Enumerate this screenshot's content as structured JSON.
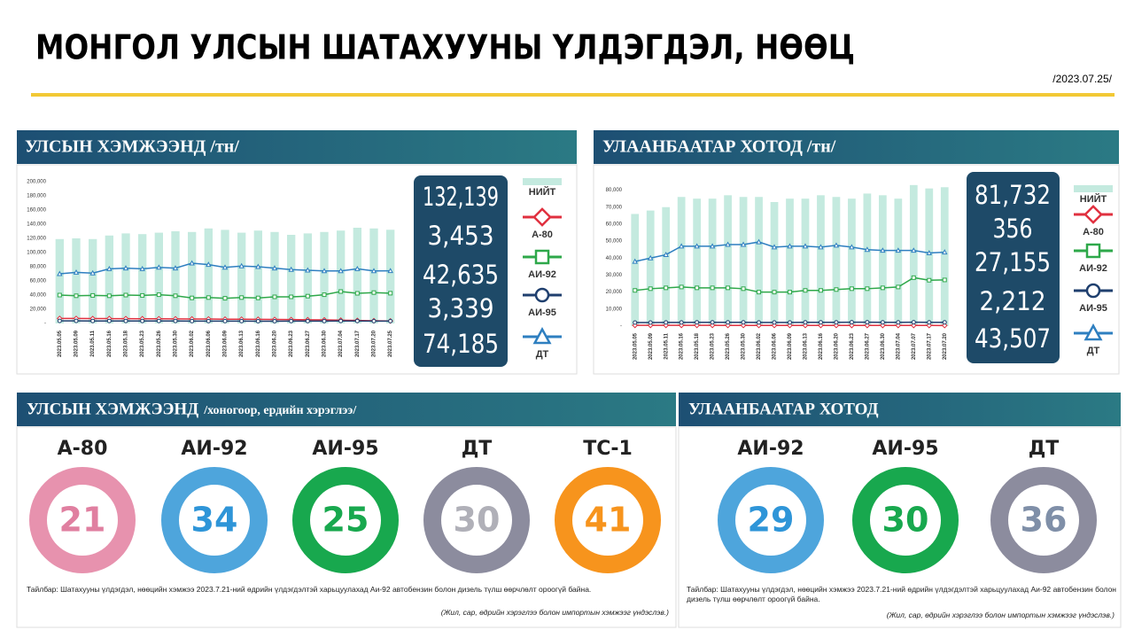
{
  "header": {
    "title": "МОНГОЛ УЛСЫН ШАТАХУУНЫ ҮЛДЭГДЭЛ, НӨӨЦ",
    "date": "/2023.07.25/"
  },
  "chart_data": [
    {
      "type": "combo",
      "title": "УЛСЫН ХЭМЖЭЭНД /тн/",
      "categories": [
        "2023.05.05",
        "2023.05.09",
        "2023.05.11",
        "2023.05.16",
        "2023.05.18",
        "2023.05.23",
        "2023.05.26",
        "2023.05.30",
        "2023.06.02",
        "2023.06.06",
        "2023.06.09",
        "2023.06.13",
        "2023.06.16",
        "2023.06.20",
        "2023.06.23",
        "2023.06.27",
        "2023.06.30",
        "2023.07.04",
        "2023.07.17",
        "2023.07.20",
        "2023.07.25"
      ],
      "ylim": [
        0,
        200000
      ],
      "yticks": [
        {
          "value": 0,
          "label": "-"
        },
        {
          "value": 20000,
          "label": "20,000"
        },
        {
          "value": 40000,
          "label": "40,000"
        },
        {
          "value": 60000,
          "label": "60,000"
        },
        {
          "value": 80000,
          "label": "80,000"
        },
        {
          "value": 100000,
          "label": "100,000"
        },
        {
          "value": 120000,
          "label": "120,000"
        },
        {
          "value": 140000,
          "label": "140,000"
        },
        {
          "value": 160000,
          "label": "160,000"
        },
        {
          "value": 180000,
          "label": "180,000"
        },
        {
          "value": 200000,
          "label": "200,000"
        }
      ],
      "series": [
        {
          "name": "НИЙТ",
          "kind": "bar",
          "color": "#c4eadf",
          "values": [
            119000,
            120000,
            119000,
            124000,
            127000,
            126000,
            128000,
            130000,
            129000,
            134000,
            132000,
            128000,
            131000,
            129000,
            125000,
            127000,
            129000,
            131000,
            135000,
            134000,
            132139
          ]
        },
        {
          "name": "А-80",
          "kind": "line",
          "marker": "diamond",
          "color": "#e0303f",
          "values": [
            7000,
            7000,
            6800,
            6800,
            6700,
            6600,
            6500,
            6400,
            6300,
            6200,
            6000,
            5900,
            5800,
            5600,
            5400,
            5200,
            5000,
            4600,
            4200,
            3800,
            3453
          ]
        },
        {
          "name": "АИ-92",
          "kind": "line",
          "marker": "square",
          "color": "#2ea84a",
          "values": [
            40000,
            39000,
            39500,
            39000,
            40000,
            39500,
            40500,
            39000,
            36000,
            36500,
            35500,
            36500,
            36000,
            37500,
            37500,
            38500,
            40500,
            45000,
            42500,
            43500,
            42635
          ]
        },
        {
          "name": "АИ-95",
          "kind": "line",
          "marker": "circle",
          "color": "#1f3f6e",
          "values": [
            3600,
            3600,
            3500,
            3500,
            3500,
            3400,
            3400,
            3400,
            3300,
            3300,
            3300,
            3300,
            3200,
            3200,
            3300,
            3300,
            3300,
            3400,
            3400,
            3300,
            3339
          ]
        },
        {
          "name": "ДТ",
          "kind": "line",
          "marker": "triangle",
          "color": "#2e7fc0",
          "values": [
            70000,
            72000,
            71000,
            77000,
            78000,
            77000,
            79000,
            78000,
            85000,
            83000,
            79000,
            81000,
            80000,
            78000,
            76000,
            75000,
            74000,
            74000,
            77000,
            74000,
            74185
          ]
        }
      ],
      "totals": {
        "values": [
          132139,
          3453,
          42635,
          3339,
          74185
        ],
        "value_labels": [
          "132,139",
          "3,453",
          "42,635",
          "3,339",
          "74,185"
        ]
      }
    },
    {
      "type": "combo",
      "title": "УЛААНБААТАР ХОТОД /тн/",
      "categories": [
        "2023.05.05",
        "2023.05.09",
        "2023.05.11",
        "2023.05.16",
        "2023.05.18",
        "2023.05.23",
        "2023.05.26",
        "2023.05.30",
        "2023.06.02",
        "2023.06.06",
        "2023.06.09",
        "2023.06.13",
        "2023.06.16",
        "2023.06.20",
        "2023.06.23",
        "2023.06.27",
        "2023.06.30",
        "2023.07.04",
        "2023.07.07",
        "2023.07.17",
        "2023.07.20"
      ],
      "ylim": [
        0,
        85000
      ],
      "yticks": [
        {
          "value": 0,
          "label": "-"
        },
        {
          "value": 10000,
          "label": "10,000"
        },
        {
          "value": 20000,
          "label": "20,000"
        },
        {
          "value": 30000,
          "label": "30,000"
        },
        {
          "value": 40000,
          "label": "40,000"
        },
        {
          "value": 50000,
          "label": "50,000"
        },
        {
          "value": 60000,
          "label": "60,000"
        },
        {
          "value": 70000,
          "label": "70,000"
        },
        {
          "value": 80000,
          "label": "80,000"
        }
      ],
      "series": [
        {
          "name": "НИЙТ",
          "kind": "bar",
          "color": "#c4eadf",
          "values": [
            66000,
            68000,
            70000,
            76000,
            75000,
            75000,
            77000,
            76000,
            76000,
            73000,
            75000,
            75000,
            77000,
            76000,
            75000,
            78000,
            77000,
            75000,
            83000,
            81000,
            81732
          ]
        },
        {
          "name": "А-80",
          "kind": "line",
          "marker": "diamond",
          "color": "#e0303f",
          "values": [
            450,
            450,
            440,
            440,
            430,
            430,
            420,
            420,
            410,
            410,
            400,
            400,
            390,
            390,
            380,
            380,
            370,
            370,
            360,
            360,
            356
          ]
        },
        {
          "name": "АИ-92",
          "kind": "line",
          "marker": "square",
          "color": "#2ea84a",
          "values": [
            21000,
            22000,
            22500,
            23000,
            22500,
            22500,
            22500,
            22000,
            20000,
            20000,
            20000,
            21000,
            21000,
            21500,
            22000,
            22000,
            22500,
            23000,
            28500,
            27000,
            27155
          ]
        },
        {
          "name": "АИ-95",
          "kind": "line",
          "marker": "circle",
          "color": "#1f3f6e",
          "values": [
            2100,
            2100,
            2150,
            2150,
            2200,
            2200,
            2200,
            2200,
            2150,
            2150,
            2150,
            2200,
            2200,
            2200,
            2250,
            2250,
            2200,
            2200,
            2250,
            2200,
            2212
          ]
        },
        {
          "name": "ДТ",
          "kind": "line",
          "marker": "triangle",
          "color": "#2e7fc0",
          "values": [
            38000,
            40000,
            42000,
            47000,
            47000,
            47000,
            48000,
            48000,
            49500,
            46500,
            47000,
            47000,
            46500,
            47500,
            46500,
            45000,
            44500,
            44500,
            44500,
            43000,
            43507
          ]
        }
      ],
      "totals": {
        "values": [
          81732,
          356,
          27155,
          2212,
          43507
        ],
        "value_labels": [
          "81,732",
          "356",
          "27,155",
          "2,212",
          "43,507"
        ]
      }
    }
  ],
  "reserves": [
    {
      "title": "УЛСЫН ХЭМЖЭЭНД",
      "subtitle": "/хоногоор, ердийн хэрэглээ/",
      "items": [
        {
          "label": "А-80",
          "days": 21,
          "color": "#e792ae",
          "text_color": "#e07fa0"
        },
        {
          "label": "АИ-92",
          "days": 34,
          "color": "#4ea5dc",
          "text_color": "#2e95d8"
        },
        {
          "label": "АИ-95",
          "days": 25,
          "color": "#18a84e",
          "text_color": "#18a84e"
        },
        {
          "label": "ДТ",
          "days": 30,
          "color": "#8c8c9e",
          "text_color": "#b0b0b8"
        },
        {
          "label": "ТС-1",
          "days": 41,
          "color": "#f7941d",
          "text_color": "#f7941d"
        }
      ],
      "note": "Тайлбар: Шатахууны үлдэгдэл, нөөцийн хэмжээ 2023.7.21-ний өдрийн үлдэгдэлтэй харьцуулахад Аи-92 автобензин болон дизель түлш өөрчлөлт ороогүй байна.",
      "source": "(Жил, сар, өдрийн хэрэглээ болон импортын хэмжээг үндэслэв.)"
    },
    {
      "title": "УЛААНБААТАР ХОТОД",
      "items": [
        {
          "label": "АИ-92",
          "days": 29,
          "color": "#4ea5dc",
          "text_color": "#2e95d8"
        },
        {
          "label": "АИ-95",
          "days": 30,
          "color": "#18a84e",
          "text_color": "#18a84e"
        },
        {
          "label": "ДТ",
          "days": 36,
          "color": "#8c8c9e",
          "text_color": "#7f8fa8"
        }
      ],
      "note": "Тайлбар: Шатахууны үлдэгдэл, нөөцийн хэмжээ 2023.7.21-ний өдрийн үлдэгдэлтэй харьцуулахад Аи-92 автобензин болон дизель түлш өөрчлөлт ороогүй байна.",
      "source": "(Жил, сар, өдрийн хэрэглээ болон импортын хэмжээг үндэслэв.)"
    }
  ]
}
